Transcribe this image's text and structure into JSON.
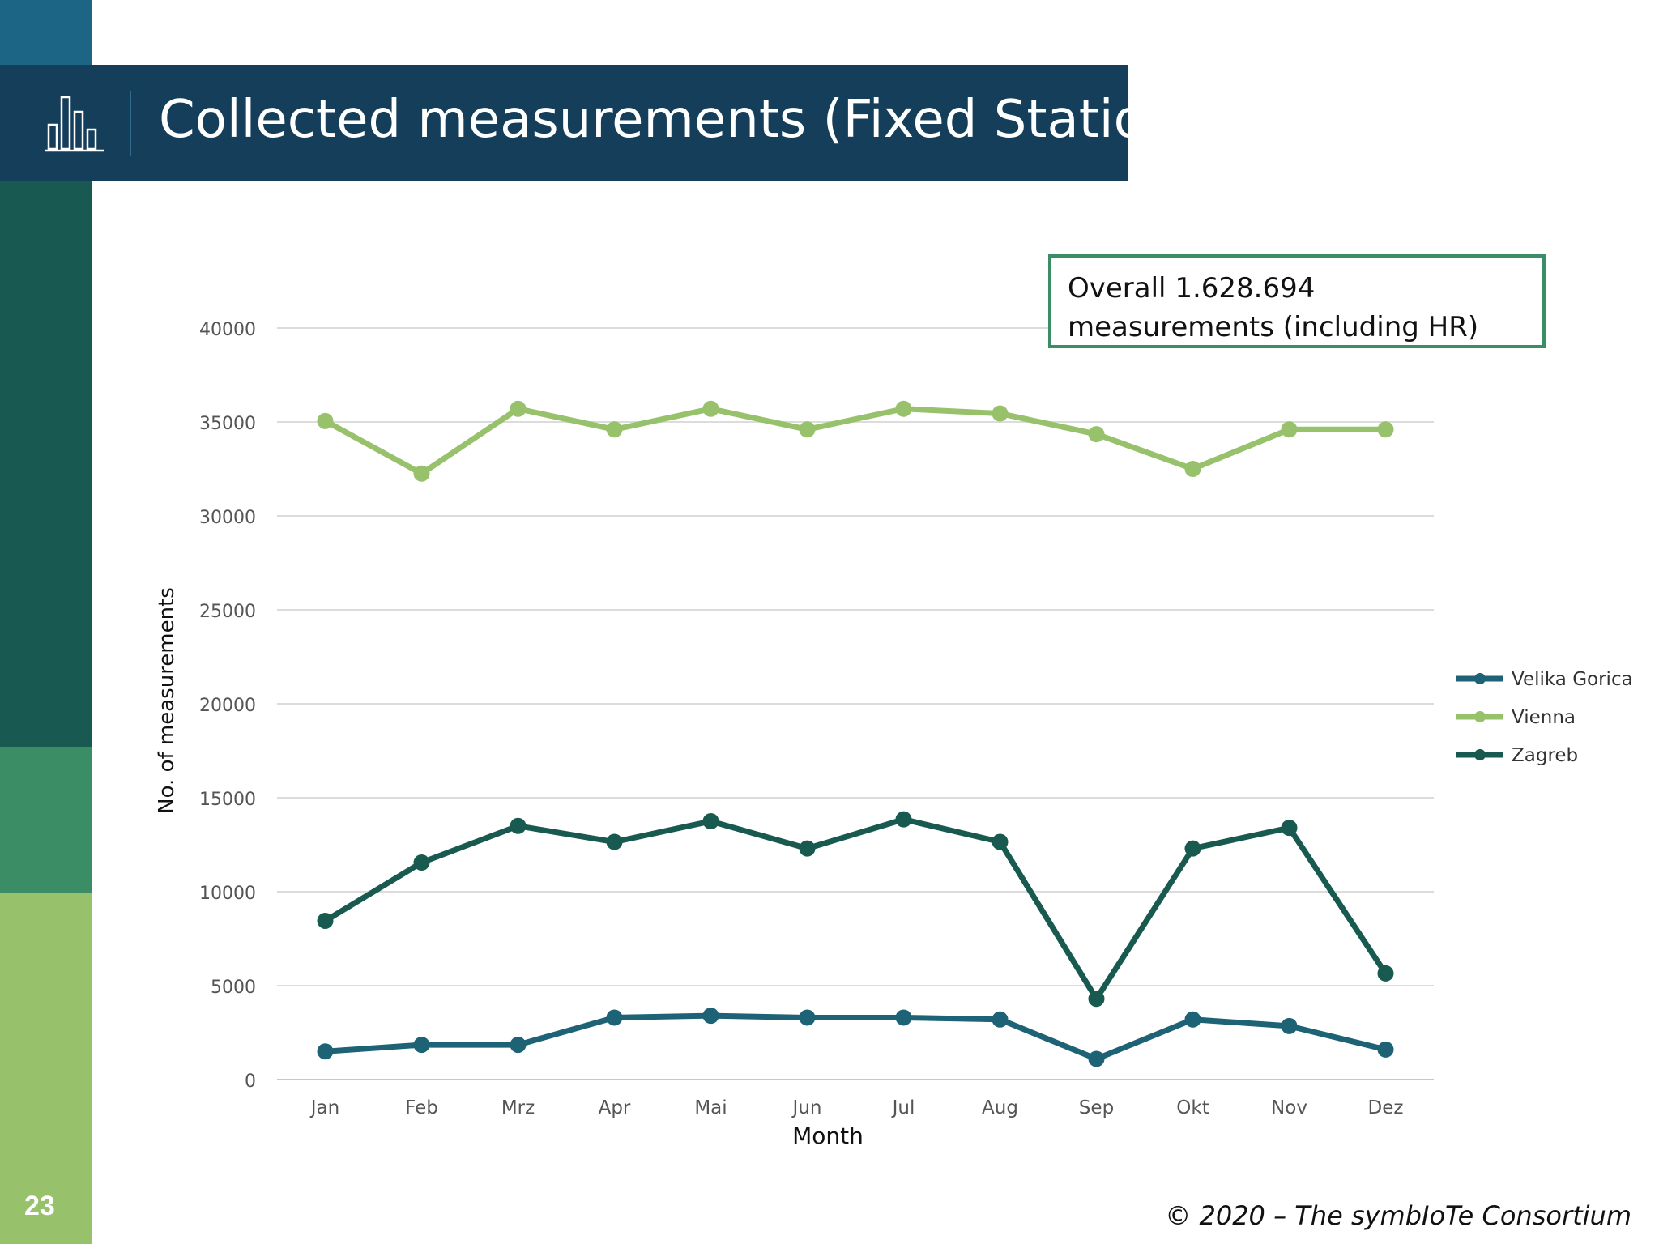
{
  "slide": {
    "title": "Collected measurements (Fixed Stations)",
    "page_number": "23",
    "note": "Overall 1.628.694 measurements (including HR)",
    "footer": "© 2020 – The symbIoTe Consortium",
    "icon": "bar-chart-icon"
  },
  "colors": {
    "header_bg": "#143e5a",
    "accent_green": "#3a8d64",
    "light_green": "#98c16b",
    "teal": "#185a52",
    "blue": "#1d6585"
  },
  "chart_data": {
    "type": "line",
    "xlabel": "Month",
    "ylabel": "No. of measurements",
    "ylim": [
      0,
      40000
    ],
    "yticks": [
      0,
      5000,
      10000,
      15000,
      20000,
      25000,
      30000,
      35000,
      40000
    ],
    "grid": true,
    "legend_position": "right",
    "categories": [
      "Jan",
      "Feb",
      "Mrz",
      "Apr",
      "Mai",
      "Jun",
      "Jul",
      "Aug",
      "Sep",
      "Okt",
      "Nov",
      "Dez"
    ],
    "series": [
      {
        "name": "Velika Gorica",
        "color": "#1d6275",
        "values": [
          1500,
          1850,
          1850,
          3300,
          3400,
          3300,
          3300,
          3200,
          1100,
          3200,
          2850,
          1600
        ]
      },
      {
        "name": "Vienna",
        "color": "#98c16b",
        "values": [
          35050,
          32250,
          35700,
          34600,
          35700,
          34600,
          35700,
          35450,
          34350,
          32500,
          34600,
          34600
        ]
      },
      {
        "name": "Zagreb",
        "color": "#185a4f",
        "values": [
          8450,
          11550,
          13500,
          12650,
          13750,
          12300,
          13850,
          12650,
          4300,
          12300,
          13400,
          5650
        ]
      }
    ]
  }
}
